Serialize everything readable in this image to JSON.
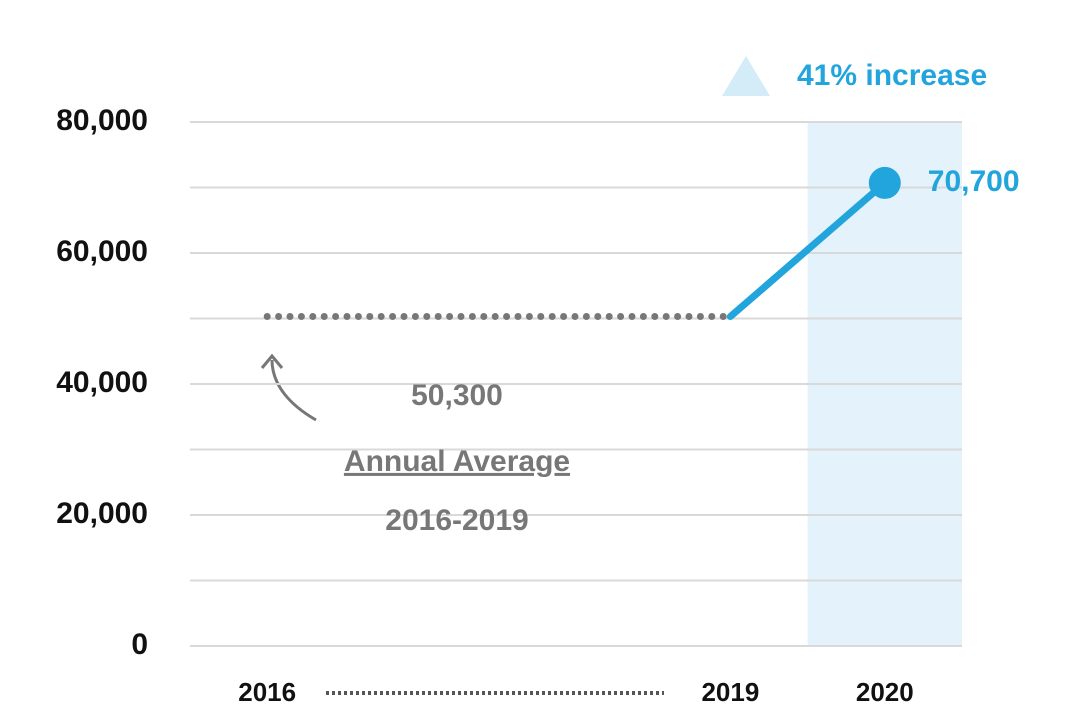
{
  "chart_data": {
    "type": "line",
    "xlim": [
      2015.5,
      2020.5
    ],
    "xticks": [
      2016,
      2019,
      2020
    ],
    "ylim": [
      0,
      80000
    ],
    "yticks": [
      {
        "value": 0,
        "label": "0"
      },
      {
        "value": 20000,
        "label": "20,000"
      },
      {
        "value": 40000,
        "label": "40,000"
      },
      {
        "value": 60000,
        "label": "60,000"
      },
      {
        "value": 80000,
        "label": "80,000"
      }
    ],
    "minor_yticks": [
      10000,
      30000,
      50000,
      70000
    ],
    "grid": true,
    "highlight_x": 2020,
    "highlight_color": "#e3f2fb",
    "series": [
      {
        "style": "dotted",
        "color": "#777777",
        "x": [
          2016,
          2019
        ],
        "values": [
          50300,
          50300
        ],
        "value_label": "50,300",
        "label_lines": [
          "Annual Average",
          "2016-2019"
        ]
      },
      {
        "style": "solid",
        "color": "#22a4dc",
        "x": [
          2019,
          2020
        ],
        "values": [
          50300,
          70700
        ],
        "value_labels": [
          null,
          "70,700"
        ]
      }
    ],
    "annotation": "41% increase"
  }
}
